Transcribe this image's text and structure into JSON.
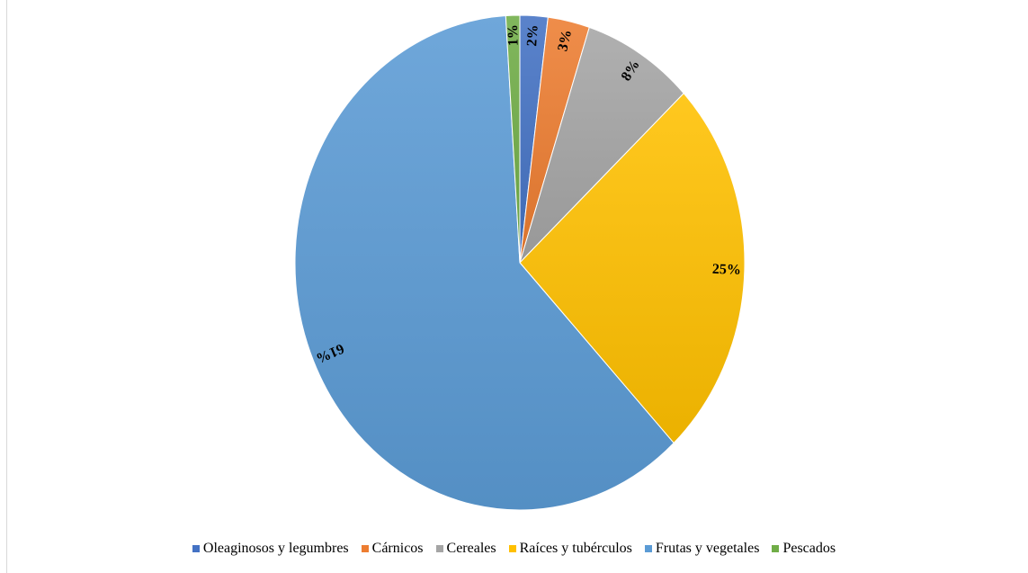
{
  "chart_data": {
    "type": "pie",
    "start_angle_deg": 0,
    "direction": "clockwise",
    "legend_position": "bottom",
    "slices": [
      {
        "name": "Oleaginosos y legumbres",
        "value": 2,
        "label": "2%",
        "color": "#4472c4"
      },
      {
        "name": "Cárnicos",
        "value": 3,
        "label": "3%",
        "color": "#ed7d31"
      },
      {
        "name": "Cereales",
        "value": 8,
        "label": "8%",
        "color": "#a5a5a5"
      },
      {
        "name": "Raíces y tubérculos",
        "value": 25,
        "label": "25%",
        "color": "#ffc000"
      },
      {
        "name": "Frutas y vegetales",
        "value": 61,
        "label": "61%",
        "color": "#5b9bd5"
      },
      {
        "name": "Pescados",
        "value": 1,
        "label": "1%",
        "color": "#70ad47"
      }
    ]
  }
}
